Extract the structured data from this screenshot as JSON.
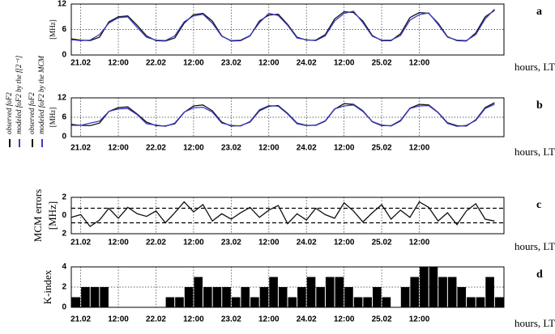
{
  "chart_data": [
    {
      "type": "line",
      "panel_label": "a",
      "ylabel": [
        "[MHz]"
      ],
      "xlabel": "hours, LT",
      "grid": true,
      "xlim": [
        -3,
        135
      ],
      "ylim": [
        0,
        12
      ],
      "yticks": [
        0,
        6,
        12
      ],
      "xticks": [
        {
          "value": 0,
          "label": "21.02"
        },
        {
          "value": 12,
          "label": "12:00"
        },
        {
          "value": 24,
          "label": "22.02"
        },
        {
          "value": 36,
          "label": "12:00"
        },
        {
          "value": 48,
          "label": "23.02"
        },
        {
          "value": 60,
          "label": "12:00"
        },
        {
          "value": 72,
          "label": "24.02"
        },
        {
          "value": 84,
          "label": "12:00"
        },
        {
          "value": 96,
          "label": "25.02"
        },
        {
          "value": 108,
          "label": "12:00"
        }
      ],
      "x": [
        -3,
        0,
        3,
        6,
        9,
        12,
        15,
        18,
        21,
        24,
        27,
        30,
        33,
        36,
        39,
        42,
        45,
        48,
        51,
        54,
        57,
        60,
        63,
        66,
        69,
        72,
        75,
        78,
        81,
        84,
        87,
        90,
        93,
        96,
        99,
        102,
        105,
        108,
        111,
        114,
        117,
        120,
        123,
        126,
        129,
        132
      ],
      "series": [
        {
          "name": "observed foF2",
          "color": "#111111",
          "values": [
            3.8,
            3.5,
            3.4,
            4.2,
            7.8,
            9.0,
            9.2,
            7.0,
            4.5,
            3.4,
            3.3,
            4.0,
            7.5,
            9.5,
            9.8,
            8.0,
            4.5,
            3.3,
            3.4,
            4.5,
            8.0,
            9.4,
            9.6,
            7.2,
            4.2,
            3.5,
            3.5,
            4.8,
            8.5,
            10.2,
            10.0,
            8.0,
            4.6,
            3.4,
            3.4,
            5.0,
            8.8,
            10.0,
            9.8,
            7.5,
            4.3,
            3.4,
            3.3,
            5.2,
            9.0,
            10.5
          ]
        },
        {
          "name": "modeled foF2 by the f[2⁻¹]",
          "color": "#3a3ac8",
          "values": [
            3.6,
            3.4,
            3.5,
            4.8,
            7.5,
            8.8,
            9.0,
            6.5,
            4.2,
            3.5,
            3.4,
            4.5,
            7.8,
            9.2,
            9.6,
            7.5,
            4.4,
            3.4,
            3.5,
            4.6,
            7.6,
            9.8,
            9.3,
            7.0,
            4.0,
            3.6,
            3.4,
            4.5,
            8.0,
            9.8,
            10.3,
            7.6,
            4.4,
            3.5,
            3.5,
            4.6,
            8.2,
            9.5,
            9.9,
            7.2,
            4.2,
            3.5,
            3.4,
            4.8,
            8.5,
            10.8
          ]
        }
      ]
    },
    {
      "type": "line",
      "panel_label": "b",
      "ylabel": [
        "[MHz]"
      ],
      "xlabel": "hours, LT",
      "grid": true,
      "xlim": [
        -3,
        135
      ],
      "ylim": [
        0,
        12
      ],
      "yticks": [
        0,
        6,
        12
      ],
      "xticks": [
        {
          "value": 0,
          "label": "21.02"
        },
        {
          "value": 12,
          "label": "12:00"
        },
        {
          "value": 24,
          "label": "22.02"
        },
        {
          "value": 36,
          "label": "12:00"
        },
        {
          "value": 48,
          "label": "23.02"
        },
        {
          "value": 60,
          "label": "12:00"
        },
        {
          "value": 72,
          "label": "24.02"
        },
        {
          "value": 84,
          "label": "12:00"
        },
        {
          "value": 96,
          "label": "25.02"
        },
        {
          "value": 108,
          "label": "12:00"
        }
      ],
      "x": [
        -3,
        0,
        3,
        6,
        9,
        12,
        15,
        18,
        21,
        24,
        27,
        30,
        33,
        36,
        39,
        42,
        45,
        48,
        51,
        54,
        57,
        60,
        63,
        66,
        69,
        72,
        75,
        78,
        81,
        84,
        87,
        90,
        93,
        96,
        99,
        102,
        105,
        108,
        111,
        114,
        117,
        120,
        123,
        126,
        129,
        132
      ],
      "series": [
        {
          "name": "observed foF2",
          "color": "#111111",
          "values": [
            3.8,
            3.5,
            3.4,
            4.2,
            7.8,
            9.0,
            9.2,
            7.0,
            4.5,
            3.4,
            3.3,
            4.0,
            7.5,
            9.5,
            9.8,
            8.0,
            4.5,
            3.3,
            3.4,
            4.5,
            8.0,
            9.4,
            9.6,
            7.2,
            4.2,
            3.5,
            3.5,
            4.8,
            8.5,
            10.2,
            10.0,
            8.0,
            4.6,
            3.4,
            3.4,
            5.0,
            8.8,
            10.0,
            9.8,
            7.5,
            4.3,
            3.4,
            3.3,
            5.2,
            9.0,
            10.5
          ]
        },
        {
          "name": "modeled foF2 by the MCM",
          "color": "#3a3ac8",
          "values": [
            3.5,
            3.5,
            4.2,
            4.8,
            7.8,
            8.6,
            8.7,
            6.8,
            4.0,
            3.6,
            3.2,
            4.2,
            7.6,
            8.9,
            9.1,
            7.6,
            4.2,
            3.5,
            3.3,
            4.7,
            8.3,
            9.6,
            9.4,
            7.0,
            4.0,
            3.4,
            3.6,
            4.9,
            8.6,
            9.5,
            9.8,
            7.8,
            4.7,
            3.6,
            3.3,
            4.8,
            8.7,
            9.5,
            9.6,
            7.4,
            4.1,
            3.2,
            3.5,
            5.0,
            8.7,
            10.0
          ]
        }
      ]
    },
    {
      "type": "line",
      "panel_label": "c",
      "ylabel": [
        "MCM errors",
        "[MHz]"
      ],
      "xlabel": "hours, LT",
      "grid": true,
      "xlim": [
        -3,
        135
      ],
      "ylim": [
        -2,
        2
      ],
      "yticks": [
        {
          "value": -2,
          "label": "2"
        },
        0,
        2
      ],
      "hlines": [
        0.8,
        -0.8
      ],
      "xticks": [
        {
          "value": 0,
          "label": "21.02"
        },
        {
          "value": 12,
          "label": "12:00"
        },
        {
          "value": 24,
          "label": "22.02"
        },
        {
          "value": 36,
          "label": "12:00"
        },
        {
          "value": 48,
          "label": "23.02"
        },
        {
          "value": 60,
          "label": "12:00"
        },
        {
          "value": 72,
          "label": "24.02"
        },
        {
          "value": 84,
          "label": "12:00"
        },
        {
          "value": 96,
          "label": "25.02"
        },
        {
          "value": 108,
          "label": "12:00"
        }
      ],
      "x": [
        -3,
        0,
        3,
        6,
        9,
        12,
        15,
        18,
        21,
        24,
        27,
        30,
        33,
        36,
        39,
        42,
        45,
        48,
        51,
        54,
        57,
        60,
        63,
        66,
        69,
        72,
        75,
        78,
        81,
        84,
        87,
        90,
        93,
        96,
        99,
        102,
        105,
        108,
        111,
        114,
        117,
        120,
        123,
        126,
        129,
        132
      ],
      "series": [
        {
          "color": "#111111",
          "values": [
            -0.2,
            0.1,
            -1.2,
            -0.5,
            0.8,
            -0.3,
            0.9,
            0.2,
            -0.1,
            0.5,
            -0.8,
            0.3,
            1.5,
            0.4,
            1.2,
            -0.6,
            0.2,
            -0.4,
            0.3,
            0.9,
            -0.2,
            0.6,
            1.1,
            -0.9,
            0.2,
            -0.5,
            0.8,
            0.1,
            -0.3,
            1.4,
            0.5,
            -0.7,
            0.3,
            1.2,
            -0.4,
            0.6,
            -0.2,
            1.5,
            0.9,
            -0.6,
            0.3,
            -1.0,
            0.5,
            1.3,
            -0.4,
            -0.6
          ]
        }
      ]
    },
    {
      "type": "bar",
      "panel_label": "d",
      "ylabel": [
        "K-index"
      ],
      "xlabel": "hours, LT",
      "grid": true,
      "xlim": [
        -3,
        135
      ],
      "ylim": [
        0,
        4
      ],
      "yticks": [
        0,
        2,
        4
      ],
      "bin_hours": 3,
      "color": "#000000",
      "xticks": [
        {
          "value": 0,
          "label": "21.02"
        },
        {
          "value": 12,
          "label": "12:00"
        },
        {
          "value": 24,
          "label": "22.02"
        },
        {
          "value": 36,
          "label": "12:00"
        },
        {
          "value": 48,
          "label": "23.02"
        },
        {
          "value": 60,
          "label": "12:00"
        },
        {
          "value": 72,
          "label": "24.02"
        },
        {
          "value": 84,
          "label": "12:00"
        },
        {
          "value": 96,
          "label": "25.02"
        },
        {
          "value": 108,
          "label": "12:00"
        }
      ],
      "x": [
        -3,
        0,
        3,
        6,
        9,
        12,
        15,
        18,
        21,
        24,
        27,
        30,
        33,
        36,
        39,
        42,
        45,
        48,
        51,
        54,
        57,
        60,
        63,
        66,
        69,
        72,
        75,
        78,
        81,
        84,
        87,
        90,
        93,
        96,
        99,
        102,
        105,
        108,
        111,
        114,
        117,
        120,
        123,
        126,
        129,
        132
      ],
      "values": [
        1,
        2,
        2,
        2,
        0,
        0,
        0,
        0,
        0,
        0,
        1,
        1,
        2,
        3,
        2,
        2,
        2,
        1,
        2,
        1,
        2,
        3,
        2,
        1,
        2,
        3,
        2,
        3,
        3,
        2,
        1,
        1,
        2,
        1,
        0,
        2,
        3,
        4,
        4,
        3,
        3,
        2,
        1,
        1,
        3,
        1
      ]
    }
  ]
}
